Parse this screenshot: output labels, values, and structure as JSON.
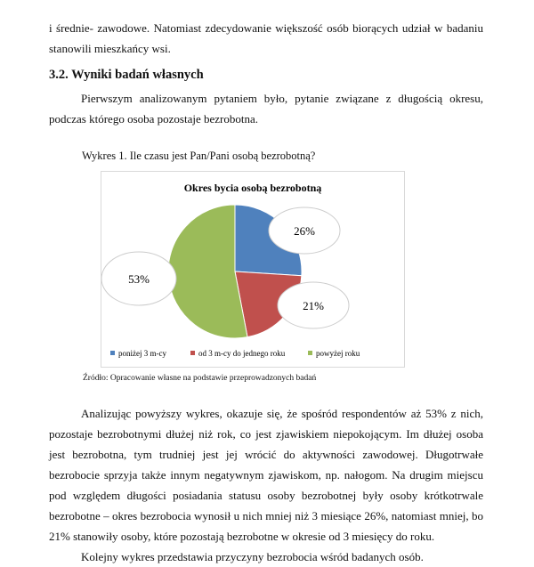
{
  "top_paragraph": "i średnie- zawodowe. Natomiast zdecydowanie większość osób biorących udział w badaniu stanowili mieszkańcy wsi.",
  "section_heading": "3.2. Wyniki badań własnych",
  "intro_paragraph": "Pierwszym analizowanym pytaniem było, pytanie związane z długością okresu, podczas którego osoba pozostaje bezrobotna.",
  "figure_caption": "Wykres 1. Ile czasu jest Pan/Pani osobą bezrobotną?",
  "figure_source": "Źródło: Opracowanie własne na podstawie przeprowadzonych badań",
  "chart_data": {
    "type": "pie",
    "title": "Okres bycia osobą bezrobotną",
    "categories": [
      "poniżej 3 m-cy",
      "od 3 m-cy do jednego roku",
      "powyżej roku"
    ],
    "values": [
      26,
      21,
      53
    ],
    "labels": [
      "26%",
      "21%",
      "53%"
    ],
    "colors": [
      "#4f81bd",
      "#c0504d",
      "#9bbb59"
    ],
    "legend": "bottom"
  },
  "analysis_paragraph": "Analizując powyższy wykres, okazuje się, że spośród respondentów aż 53% z nich, pozostaje bezrobotnymi dłużej niż rok, co jest zjawiskiem niepokojącym. Im dłużej osoba jest bezrobotna, tym trudniej jest jej wrócić do aktywności zawodowej. Długotrwałe bezrobocie sprzyja także innym negatywnym zjawiskom, np. nałogom. Na drugim miejscu pod względem długości posiadania statusu osoby bezrobotnej były osoby krótkotrwale bezrobotne – okres bezrobocia wynosił u nich mniej niż 3 miesiące 26%, natomiast mniej, bo 21% stanowiły osoby, które pozostają bezrobotne w okresie od 3 miesięcy do roku.",
  "next_paragraph": "Kolejny wykres przedstawia przyczyny bezrobocia wśród badanych osób."
}
